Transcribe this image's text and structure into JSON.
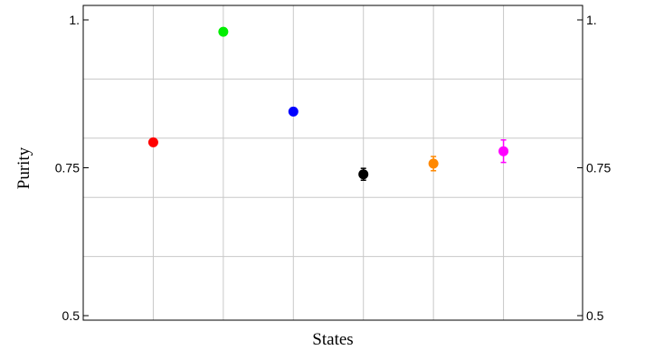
{
  "chart_data": {
    "type": "scatter",
    "title": "",
    "xlabel": "States",
    "ylabel": "Purity",
    "ylim": [
      0.5,
      1.0
    ],
    "yticks": [
      {
        "value": 0.5,
        "label": "0.5"
      },
      {
        "value": 0.75,
        "label": "0.75"
      },
      {
        "value": 1.0,
        "label": "1."
      }
    ],
    "grid": true,
    "grid_y": [
      0.6,
      0.7,
      0.8,
      0.9
    ],
    "x_grid_positions": [
      1,
      2,
      3,
      4,
      5,
      6
    ],
    "xlim": [
      0,
      7
    ],
    "points": [
      {
        "x": 1,
        "y": 0.793,
        "err": 0.004,
        "color": "#ff0000"
      },
      {
        "x": 2,
        "y": 0.98,
        "err": 0.003,
        "color": "#00ee00"
      },
      {
        "x": 3,
        "y": 0.845,
        "err": 0.006,
        "color": "#0000ff"
      },
      {
        "x": 4,
        "y": 0.739,
        "err": 0.01,
        "color": "#000000"
      },
      {
        "x": 5,
        "y": 0.757,
        "err": 0.012,
        "color": "#ff8800"
      },
      {
        "x": 6,
        "y": 0.778,
        "err": 0.019,
        "color": "#ff00ff"
      }
    ]
  }
}
